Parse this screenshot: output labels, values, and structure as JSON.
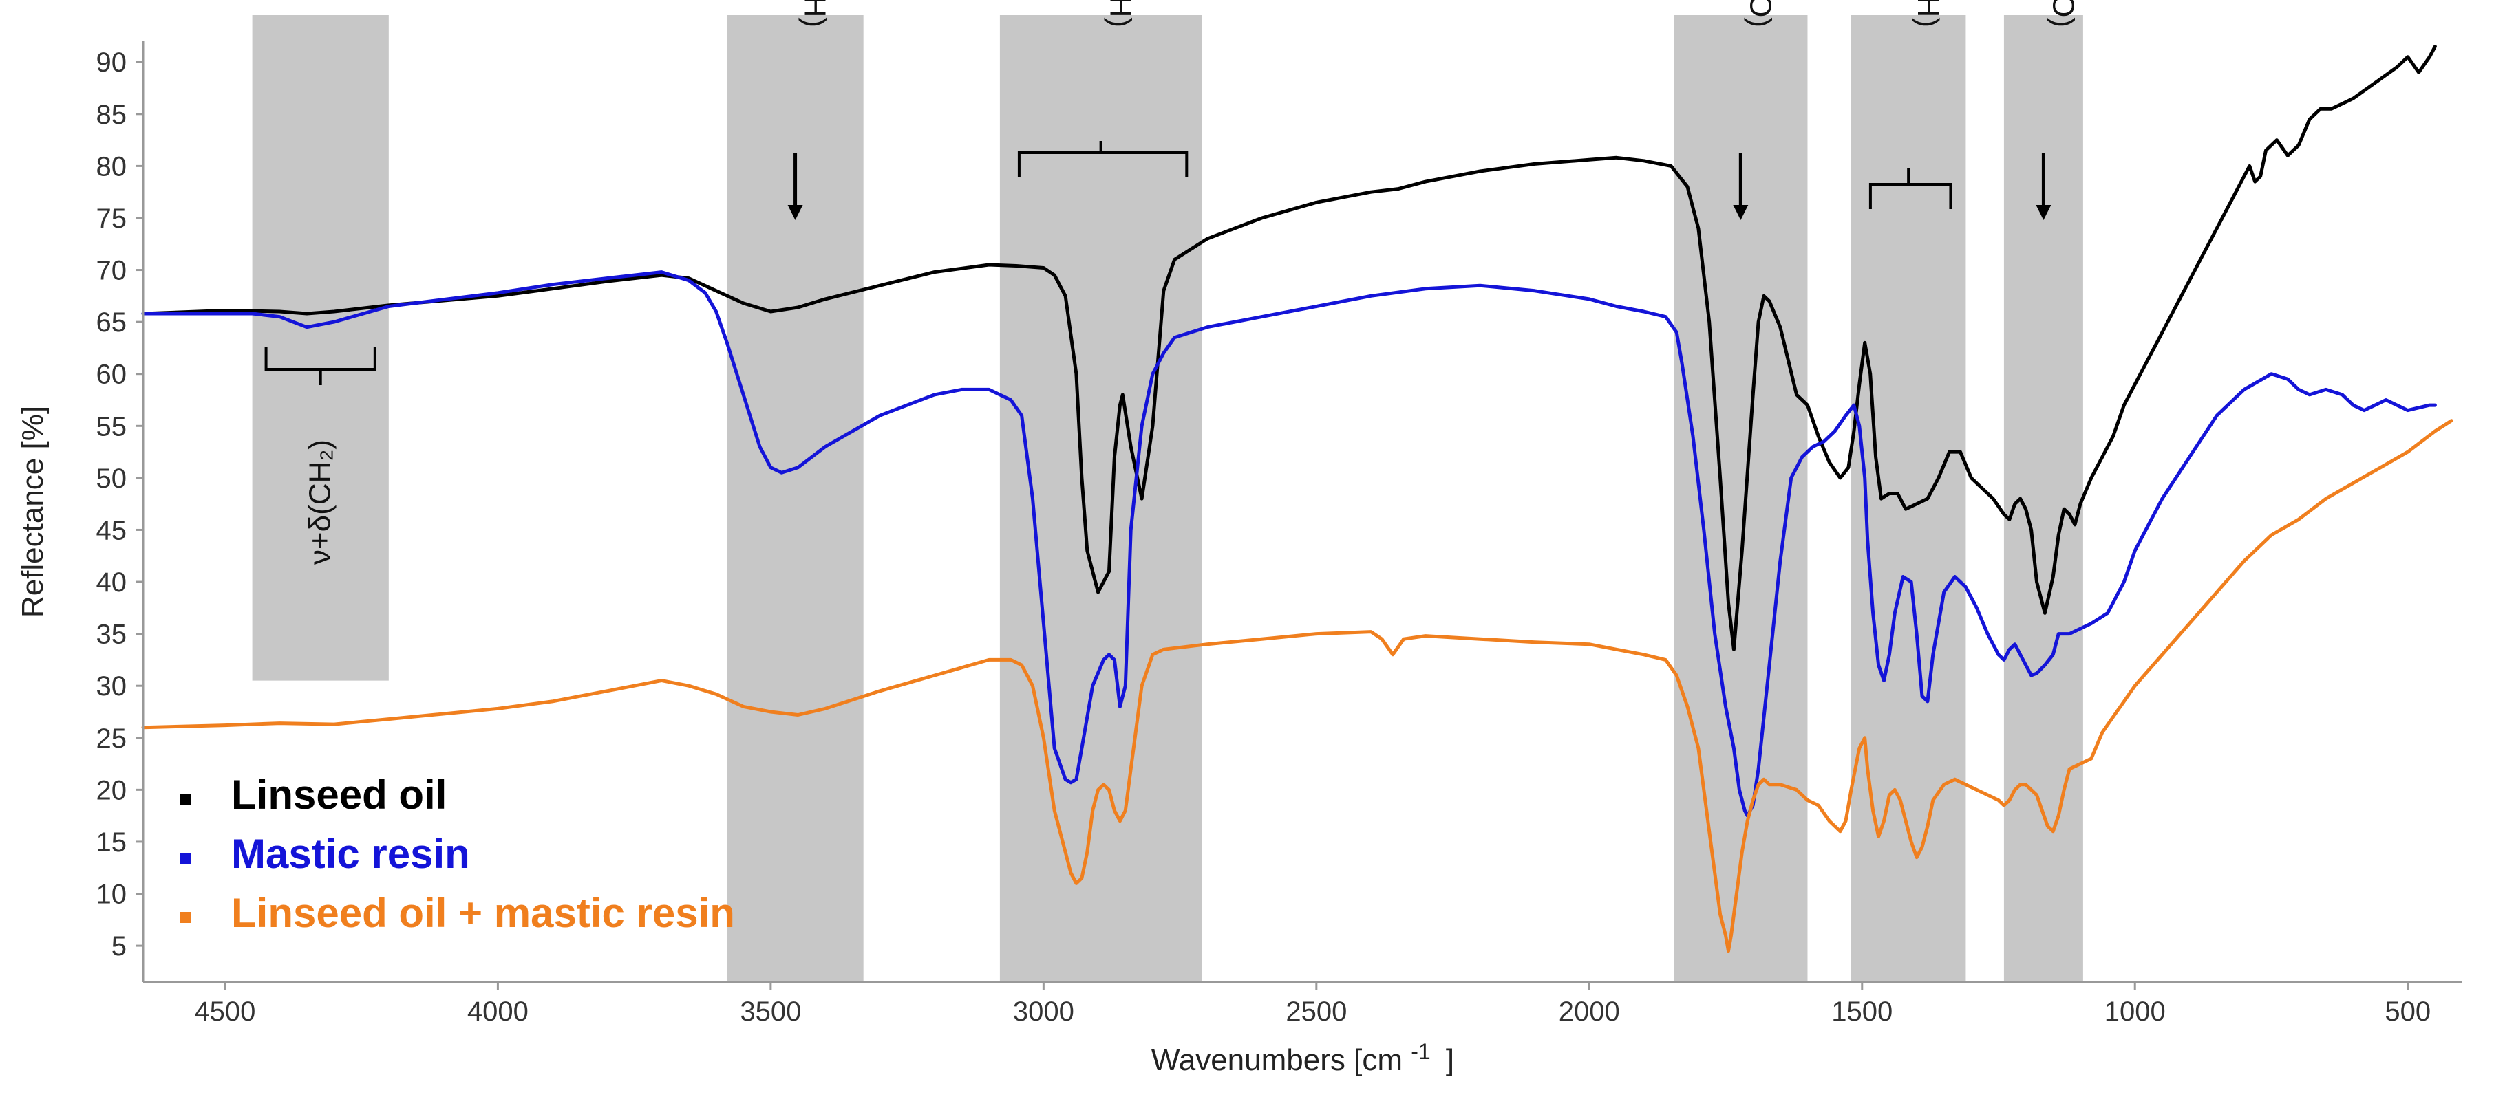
{
  "chart_data": {
    "type": "line",
    "title": "",
    "xlabel": "Wavenumbers [cm",
    "xlabel_superscript": "-1",
    "xlabel_suffix": "]",
    "ylabel": "Reflectance [%]",
    "xlim": [
      4650,
      400
    ],
    "ylim": [
      1.5,
      92
    ],
    "x_reversed": true,
    "grid": false,
    "x_ticks": [
      4500,
      4000,
      3500,
      3000,
      2500,
      2000,
      1500,
      1000,
      500
    ],
    "y_ticks": [
      5,
      10,
      15,
      20,
      25,
      30,
      35,
      40,
      45,
      50,
      55,
      60,
      65,
      70,
      75,
      80,
      85,
      90
    ],
    "bands": [
      {
        "from": 4450,
        "to": 4200,
        "ymin": 30.5,
        "label": "ν+δ(CH₂)",
        "marker": "brace"
      },
      {
        "from": 3580,
        "to": 3330,
        "ymin": 1.5,
        "label": "ν(OH)",
        "marker": "arrow"
      },
      {
        "from": 3080,
        "to": 2710,
        "ymin": 1.5,
        "label": "ν(CH)",
        "marker": "brace"
      },
      {
        "from": 1845,
        "to": 1600,
        "ymin": 1.5,
        "label": "ν(C=O)",
        "marker": "arrow"
      },
      {
        "from": 1520,
        "to": 1310,
        "ymin": 1.5,
        "label": "δ(CH)",
        "marker": "brace"
      },
      {
        "from": 1240,
        "to": 1095,
        "ymin": 1.5,
        "label": "ν(C–O)",
        "marker": "arrow"
      }
    ],
    "series": [
      {
        "name": "Linseed oil",
        "color": "#000000",
        "x": [
          4650,
          4500,
          4400,
          4350,
          4300,
          4200,
          4000,
          3900,
          3800,
          3700,
          3650,
          3600,
          3550,
          3500,
          3450,
          3400,
          3300,
          3200,
          3100,
          3050,
          3000,
          2980,
          2960,
          2940,
          2930,
          2920,
          2900,
          2880,
          2870,
          2860,
          2855,
          2840,
          2820,
          2800,
          2780,
          2760,
          2700,
          2600,
          2500,
          2400,
          2350,
          2300,
          2200,
          2100,
          2000,
          1950,
          1900,
          1850,
          1820,
          1800,
          1780,
          1760,
          1745,
          1735,
          1720,
          1700,
          1690,
          1680,
          1670,
          1650,
          1620,
          1600,
          1580,
          1560,
          1540,
          1525,
          1515,
          1505,
          1495,
          1485,
          1475,
          1465,
          1450,
          1435,
          1420,
          1400,
          1380,
          1360,
          1340,
          1320,
          1300,
          1280,
          1260,
          1240,
          1230,
          1220,
          1210,
          1200,
          1190,
          1180,
          1165,
          1150,
          1140,
          1130,
          1120,
          1110,
          1100,
          1080,
          1060,
          1040,
          1020,
          1000,
          960,
          920,
          880,
          840,
          820,
          800,
          790,
          780,
          770,
          760,
          740,
          720,
          700,
          680,
          660,
          640,
          620,
          600,
          560,
          520,
          500,
          480,
          460,
          450
        ],
        "y": [
          65.8,
          66.1,
          66.0,
          65.8,
          66.0,
          66.6,
          67.5,
          68.2,
          68.9,
          69.5,
          69.2,
          68.0,
          66.8,
          66.0,
          66.4,
          67.2,
          68.5,
          69.8,
          70.5,
          70.4,
          70.2,
          69.5,
          67.5,
          60.0,
          50.0,
          43.0,
          39.0,
          41.0,
          52.0,
          57.0,
          58.0,
          53.0,
          48.0,
          55.0,
          68.0,
          71.0,
          73.0,
          75.0,
          76.5,
          77.5,
          77.8,
          78.5,
          79.5,
          80.2,
          80.6,
          80.8,
          80.5,
          80.0,
          78.0,
          74.0,
          65.0,
          50.0,
          38.0,
          33.5,
          43.0,
          58.0,
          65.0,
          67.5,
          67.0,
          64.5,
          58.0,
          57.0,
          54.0,
          51.5,
          50.0,
          51.0,
          54.5,
          59.0,
          63.0,
          60.0,
          52.0,
          48.0,
          48.5,
          48.5,
          47.0,
          47.5,
          48.0,
          50.0,
          52.5,
          52.5,
          50.0,
          49.0,
          48.0,
          46.5,
          46.0,
          47.5,
          48.0,
          47.0,
          45.0,
          40.0,
          37.0,
          40.5,
          44.5,
          47.0,
          46.5,
          45.5,
          47.5,
          50.0,
          52.0,
          54.0,
          57.0,
          59.0,
          63.0,
          67.0,
          71.0,
          75.0,
          77.0,
          79.0,
          80.0,
          78.5,
          79.0,
          81.5,
          82.5,
          81.0,
          82.0,
          84.5,
          85.5,
          85.5,
          86.0,
          86.5,
          88.0,
          89.5,
          90.5,
          89.0,
          90.5,
          91.5
        ]
      },
      {
        "name": "Mastic resin",
        "color": "#1414d8",
        "x": [
          4650,
          4450,
          4400,
          4350,
          4300,
          4200,
          4000,
          3900,
          3800,
          3700,
          3650,
          3620,
          3600,
          3580,
          3550,
          3520,
          3500,
          3480,
          3450,
          3400,
          3300,
          3200,
          3150,
          3100,
          3060,
          3040,
          3020,
          3000,
          2980,
          2960,
          2950,
          2940,
          2930,
          2910,
          2890,
          2880,
          2870,
          2860,
          2850,
          2840,
          2820,
          2800,
          2780,
          2760,
          2700,
          2600,
          2500,
          2400,
          2300,
          2200,
          2100,
          2000,
          1950,
          1900,
          1860,
          1840,
          1830,
          1810,
          1790,
          1770,
          1750,
          1735,
          1725,
          1715,
          1710,
          1700,
          1690,
          1670,
          1650,
          1630,
          1610,
          1590,
          1570,
          1550,
          1530,
          1515,
          1505,
          1495,
          1490,
          1480,
          1470,
          1460,
          1450,
          1440,
          1425,
          1410,
          1400,
          1390,
          1380,
          1370,
          1350,
          1330,
          1310,
          1290,
          1270,
          1250,
          1240,
          1230,
          1220,
          1200,
          1190,
          1180,
          1165,
          1150,
          1140,
          1120,
          1100,
          1080,
          1050,
          1020,
          1000,
          950,
          900,
          850,
          800,
          750,
          720,
          700,
          680,
          650,
          620,
          600,
          580,
          560,
          540,
          500,
          460,
          450
        ],
        "y": [
          65.8,
          65.8,
          65.5,
          64.5,
          65.0,
          66.5,
          67.8,
          68.6,
          69.2,
          69.8,
          69.0,
          67.8,
          66.0,
          63.0,
          58.0,
          53.0,
          51.0,
          50.5,
          51.0,
          53.0,
          56.0,
          58.0,
          58.5,
          58.5,
          57.5,
          56.0,
          48.0,
          36.0,
          24.0,
          21.0,
          20.7,
          21.0,
          24.0,
          30.0,
          32.5,
          33.0,
          32.5,
          28.0,
          30.0,
          45.0,
          55.0,
          60.0,
          62.0,
          63.5,
          64.5,
          65.5,
          66.5,
          67.5,
          68.2,
          68.5,
          68.0,
          67.2,
          66.5,
          66.0,
          65.5,
          64.0,
          61.0,
          54.0,
          45.0,
          35.0,
          28.0,
          24.0,
          20.0,
          18.0,
          17.5,
          18.5,
          22.0,
          32.0,
          42.0,
          50.0,
          52.0,
          53.0,
          53.5,
          54.5,
          56.0,
          57.0,
          55.0,
          50.0,
          44.0,
          37.0,
          32.0,
          30.5,
          33.0,
          37.0,
          40.5,
          40.0,
          35.0,
          29.0,
          28.5,
          33.0,
          39.0,
          40.5,
          39.5,
          37.5,
          35.0,
          33.0,
          32.5,
          33.5,
          34.0,
          32.0,
          31.0,
          31.2,
          32.0,
          33.0,
          35.0,
          35.0,
          35.5,
          36.0,
          37.0,
          40.0,
          43.0,
          48.0,
          52.0,
          56.0,
          58.5,
          60.0,
          59.5,
          58.5,
          58.0,
          58.5,
          58.0,
          57.0,
          56.5,
          57.0,
          57.5,
          56.5,
          57.0,
          57.0
        ]
      },
      {
        "name": "Linseed oil + mastic resin",
        "color": "#f07f1e",
        "x": [
          4650,
          4500,
          4400,
          4300,
          4200,
          4000,
          3900,
          3850,
          3800,
          3750,
          3700,
          3650,
          3600,
          3550,
          3500,
          3450,
          3400,
          3300,
          3200,
          3100,
          3060,
          3040,
          3020,
          3000,
          2980,
          2960,
          2950,
          2940,
          2930,
          2920,
          2910,
          2900,
          2890,
          2880,
          2870,
          2860,
          2850,
          2840,
          2820,
          2800,
          2780,
          2700,
          2600,
          2500,
          2400,
          2380,
          2360,
          2340,
          2300,
          2200,
          2100,
          2000,
          1950,
          1900,
          1860,
          1840,
          1820,
          1800,
          1790,
          1780,
          1770,
          1760,
          1750,
          1745,
          1740,
          1730,
          1720,
          1710,
          1700,
          1690,
          1680,
          1670,
          1650,
          1620,
          1600,
          1580,
          1560,
          1540,
          1530,
          1520,
          1505,
          1495,
          1490,
          1480,
          1470,
          1460,
          1450,
          1440,
          1430,
          1420,
          1410,
          1400,
          1390,
          1380,
          1370,
          1350,
          1330,
          1310,
          1290,
          1270,
          1250,
          1240,
          1230,
          1220,
          1210,
          1200,
          1180,
          1170,
          1160,
          1150,
          1140,
          1130,
          1120,
          1100,
          1080,
          1060,
          1040,
          1020,
          1000,
          950,
          900,
          850,
          800,
          750,
          700,
          650,
          600,
          550,
          500,
          450,
          420
        ],
        "y": [
          26.0,
          26.2,
          26.4,
          26.3,
          26.8,
          27.8,
          28.5,
          29.0,
          29.5,
          30.0,
          30.5,
          30.0,
          29.2,
          28.0,
          27.5,
          27.2,
          27.8,
          29.5,
          31.0,
          32.5,
          32.5,
          32.0,
          30.0,
          25.0,
          18.0,
          14.0,
          12.0,
          11.0,
          11.5,
          14.0,
          18.0,
          20.0,
          20.5,
          20.0,
          18.0,
          17.0,
          18.0,
          22.0,
          30.0,
          33.0,
          33.5,
          34.0,
          34.5,
          35.0,
          35.2,
          34.5,
          33.0,
          34.5,
          34.8,
          34.5,
          34.2,
          34.0,
          33.5,
          33.0,
          32.5,
          31.0,
          28.0,
          24.0,
          20.0,
          16.0,
          12.0,
          8.0,
          6.0,
          4.5,
          6.0,
          10.0,
          14.0,
          17.0,
          19.0,
          20.5,
          21.0,
          20.5,
          20.5,
          20.0,
          19.0,
          18.5,
          17.0,
          16.0,
          17.0,
          20.0,
          24.0,
          25.0,
          22.0,
          18.0,
          15.5,
          17.0,
          19.5,
          20.0,
          19.0,
          17.0,
          15.0,
          13.5,
          14.5,
          16.5,
          19.0,
          20.5,
          21.0,
          20.5,
          20.0,
          19.5,
          19.0,
          18.5,
          19.0,
          20.0,
          20.5,
          20.5,
          19.5,
          18.0,
          16.5,
          16.0,
          17.5,
          20.0,
          22.0,
          22.5,
          23.0,
          25.5,
          27.0,
          28.5,
          30.0,
          33.0,
          36.0,
          39.0,
          42.0,
          44.5,
          46.0,
          48.0,
          49.5,
          51.0,
          52.5,
          54.5,
          55.5
        ]
      }
    ],
    "legend": {
      "position": "bottom-left",
      "entries": [
        "Linseed oil",
        "Mastic resin",
        "Linseed oil + mastic resin"
      ]
    }
  }
}
